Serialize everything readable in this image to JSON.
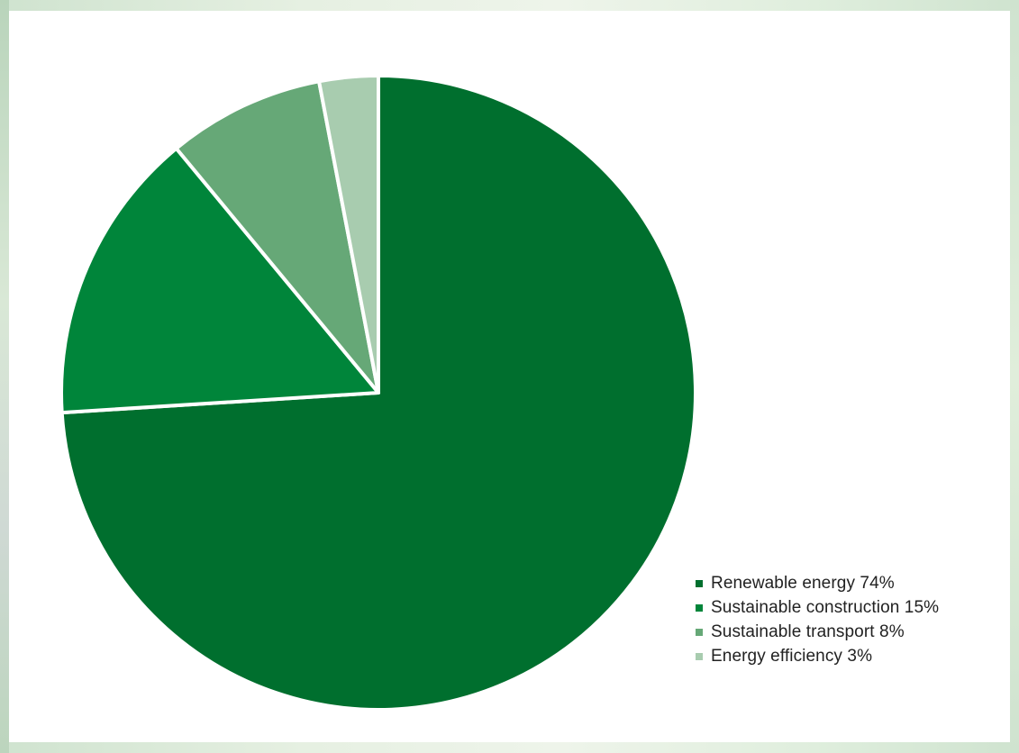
{
  "chart_data": {
    "type": "pie",
    "title": "",
    "slices": [
      {
        "label": "Renewable energy 74%",
        "value": 74,
        "color": "#006f2e"
      },
      {
        "label": "Sustainable construction 15%",
        "value": 15,
        "color": "#00853a"
      },
      {
        "label": "Sustainable transport 8%",
        "value": 8,
        "color": "#66a877"
      },
      {
        "label": "Energy efficiency 3%",
        "value": 3,
        "color": "#a8ccaf"
      }
    ],
    "start_angle_note": "12 o'clock, clockwise",
    "legend_position": "bottom-right"
  },
  "colors": {
    "background": "#ffffff",
    "slice_border": "#ffffff",
    "legend_text": "#222222"
  }
}
